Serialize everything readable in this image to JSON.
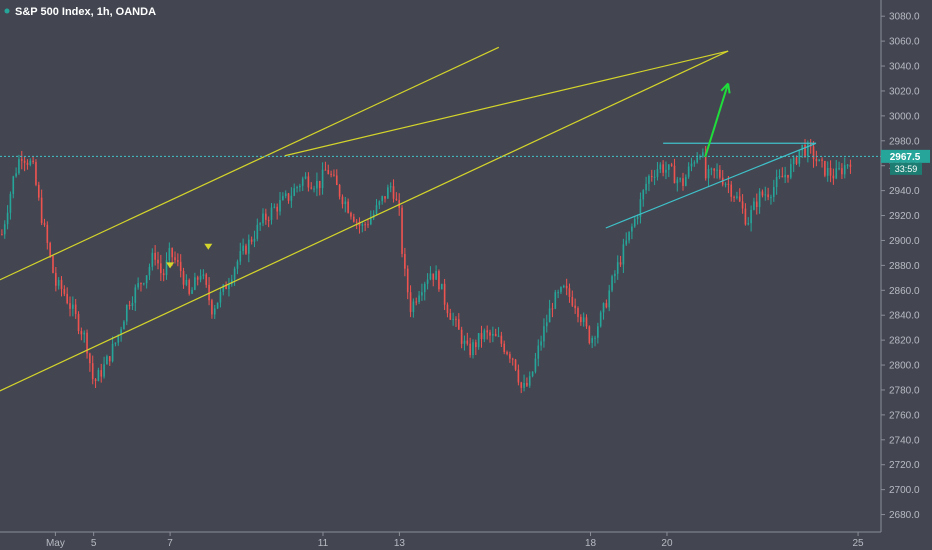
{
  "header": {
    "title": "S&P 500 Index, 1h, OANDA"
  },
  "price_badge": {
    "price": "2967.5",
    "countdown": "33:59"
  },
  "colors": {
    "background": "#434651",
    "up_candle": "#26a69a",
    "down_candle": "#ef5350",
    "channel_line": "#d4d42b",
    "triangle_line": "#3fc1c9",
    "arrow": "#1fdd3a",
    "price_line": "#3fc1c9",
    "badge": "#26a69a"
  },
  "chart_data": {
    "type": "candlestick",
    "title": "S&P 500 Index, 1h, OANDA",
    "ylim": [
      2666,
      3093
    ],
    "y_ticks": [
      "2680.0",
      "2700.0",
      "2720.0",
      "2740.0",
      "2760.0",
      "2780.0",
      "2800.0",
      "2820.0",
      "2840.0",
      "2860.0",
      "2880.0",
      "2900.0",
      "2920.0",
      "2940.0",
      "2960.0",
      "2980.0",
      "3000.0",
      "3020.0",
      "3040.0",
      "3060.0",
      "3080.0"
    ],
    "x_ticks": [
      {
        "label": "May",
        "x": 4.0
      },
      {
        "label": "5",
        "x": 5.0
      },
      {
        "label": "7",
        "x": 7.0
      },
      {
        "label": "11",
        "x": 11.0
      },
      {
        "label": "13",
        "x": 13.0
      },
      {
        "label": "18",
        "x": 18.0
      },
      {
        "label": "20",
        "x": 20.0
      },
      {
        "label": "25",
        "x": 25.0
      }
    ],
    "current_price": 2967.5,
    "path": [
      [
        2.6,
        2905
      ],
      [
        2.9,
        2950
      ],
      [
        3.1,
        2970
      ],
      [
        3.4,
        2960
      ],
      [
        3.6,
        2925
      ],
      [
        3.8,
        2895
      ],
      [
        4.0,
        2865
      ],
      [
        4.2,
        2860
      ],
      [
        4.5,
        2840
      ],
      [
        4.8,
        2820
      ],
      [
        5.0,
        2785
      ],
      [
        5.3,
        2800
      ],
      [
        5.6,
        2820
      ],
      [
        5.9,
        2850
      ],
      [
        6.1,
        2860
      ],
      [
        6.4,
        2875
      ],
      [
        6.6,
        2890
      ],
      [
        6.8,
        2870
      ],
      [
        7.0,
        2890
      ],
      [
        7.3,
        2875
      ],
      [
        7.5,
        2855
      ],
      [
        7.8,
        2875
      ],
      [
        8.1,
        2845
      ],
      [
        8.4,
        2860
      ],
      [
        8.7,
        2880
      ],
      [
        9.0,
        2895
      ],
      [
        9.4,
        2915
      ],
      [
        9.7,
        2925
      ],
      [
        10.1,
        2935
      ],
      [
        10.5,
        2950
      ],
      [
        10.9,
        2945
      ],
      [
        11.1,
        2958
      ],
      [
        11.4,
        2940
      ],
      [
        11.7,
        2925
      ],
      [
        12.0,
        2910
      ],
      [
        12.3,
        2920
      ],
      [
        12.6,
        2935
      ],
      [
        12.8,
        2945
      ],
      [
        13.0,
        2920
      ],
      [
        13.1,
        2880
      ],
      [
        13.3,
        2845
      ],
      [
        13.5,
        2860
      ],
      [
        13.8,
        2875
      ],
      [
        14.0,
        2870
      ],
      [
        14.2,
        2850
      ],
      [
        14.5,
        2830
      ],
      [
        14.8,
        2810
      ],
      [
        15.2,
        2825
      ],
      [
        15.6,
        2820
      ],
      [
        16.0,
        2805
      ],
      [
        16.2,
        2780
      ],
      [
        16.4,
        2785
      ],
      [
        16.7,
        2820
      ],
      [
        17.0,
        2850
      ],
      [
        17.3,
        2860
      ],
      [
        17.6,
        2850
      ],
      [
        17.8,
        2835
      ],
      [
        18.0,
        2820
      ],
      [
        18.3,
        2840
      ],
      [
        18.6,
        2870
      ],
      [
        18.9,
        2895
      ],
      [
        19.2,
        2920
      ],
      [
        19.5,
        2950
      ],
      [
        19.8,
        2960
      ],
      [
        20.1,
        2955
      ],
      [
        20.4,
        2945
      ],
      [
        20.7,
        2965
      ],
      [
        20.9,
        2975
      ],
      [
        21.0,
        2950
      ],
      [
        21.3,
        2955
      ],
      [
        21.6,
        2945
      ],
      [
        21.9,
        2930
      ],
      [
        22.1,
        2915
      ],
      [
        22.4,
        2935
      ],
      [
        22.7,
        2940
      ],
      [
        23.0,
        2950
      ],
      [
        23.3,
        2960
      ],
      [
        23.5,
        2975
      ],
      [
        23.8,
        2970
      ],
      [
        24.0,
        2960
      ],
      [
        24.2,
        2955
      ],
      [
        24.4,
        2952
      ],
      [
        24.6,
        2958
      ],
      [
        24.8,
        2965
      ]
    ],
    "annotations": {
      "channel_upper_1": [
        [
          0,
          2832
        ],
        [
          15.6,
          3055
        ]
      ],
      "channel_lower_1": [
        [
          1.2,
          2760
        ],
        [
          21.6,
          3052
        ]
      ],
      "channel_upper_2": [
        [
          10.0,
          2968
        ],
        [
          21.6,
          3052
        ]
      ],
      "triangle_top": [
        [
          19.9,
          2978
        ],
        [
          23.9,
          2978
        ]
      ],
      "triangle_bottom": [
        [
          18.4,
          2910
        ],
        [
          23.9,
          2978
        ]
      ],
      "arrow_from": [
        21.0,
        2967
      ],
      "arrow_to": [
        21.6,
        3026
      ],
      "markers": [
        {
          "x": 7.0,
          "price": 2880,
          "color": "#d4d42b"
        },
        {
          "x": 8.0,
          "price": 2895,
          "color": "#d4d42b"
        }
      ]
    }
  }
}
